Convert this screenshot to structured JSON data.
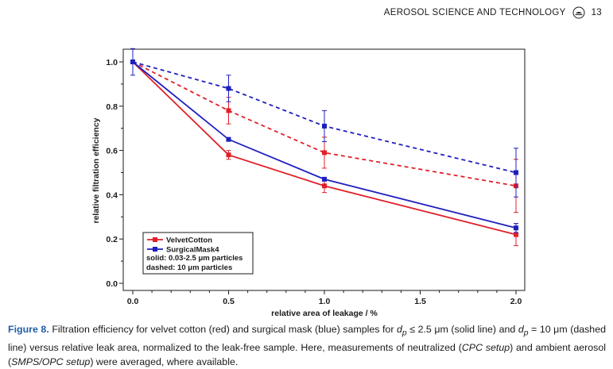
{
  "header": {
    "journal": "AEROSOL SCIENCE AND TECHNOLOGY",
    "logo_icon": "journal-logo-icon",
    "page_number": "13"
  },
  "chart_data": {
    "type": "line",
    "xlabel": "relative area of leakage / %",
    "ylabel": "relative filtration efficiency",
    "xlim": [
      0,
      2.0
    ],
    "ylim": [
      0,
      1.05
    ],
    "x_ticks": [
      "0.0",
      "0.5",
      "1.0",
      "1.5",
      "2.0"
    ],
    "x_tick_values": [
      0,
      0.5,
      1.0,
      1.5,
      2.0
    ],
    "y_ticks": [
      "0.0",
      "0.2",
      "0.4",
      "0.6",
      "0.8",
      "1.0"
    ],
    "y_tick_values": [
      0,
      0.2,
      0.4,
      0.6,
      0.8,
      1.0
    ],
    "x": [
      0,
      0.5,
      1.0,
      2.0
    ],
    "series": [
      {
        "name": "VelvetCotton",
        "particles": "solid",
        "color": "#e0202a",
        "dashed": false,
        "values": [
          1.0,
          0.58,
          0.44,
          0.22
        ],
        "errors": [
          0.0,
          0.02,
          0.03,
          0.05
        ]
      },
      {
        "name": "SurgicalMask4",
        "particles": "solid",
        "color": "#1f1fbf",
        "dashed": false,
        "values": [
          1.0,
          0.65,
          0.47,
          0.25
        ],
        "errors": [
          0.0,
          0.0,
          0.0,
          0.02
        ]
      },
      {
        "name": "VelvetCotton",
        "particles": "dashed",
        "color": "#e0202a",
        "dashed": true,
        "values": [
          1.0,
          0.78,
          0.59,
          0.44
        ],
        "errors": [
          0.0,
          0.06,
          0.07,
          0.12
        ]
      },
      {
        "name": "SurgicalMask4",
        "particles": "dashed",
        "color": "#1f1fbf",
        "dashed": true,
        "values": [
          1.0,
          0.88,
          0.71,
          0.5
        ],
        "errors": [
          0.06,
          0.06,
          0.07,
          0.11
        ]
      }
    ],
    "legend": {
      "placement": "bottom-left",
      "entries": [
        "VelvetCotton",
        "SurgicalMask4"
      ],
      "notes": [
        "solid: 0.03-2.5 μm particles",
        "dashed: 10 μm particles"
      ]
    }
  },
  "caption": {
    "label": "Figure 8.",
    "text_1": " Filtration efficiency for velvet cotton (red) and surgical mask (blue) samples for ",
    "cond_1": "d",
    "cond_1_sub": "p",
    "cond_1_rel": " ≤ 2.5 μm",
    "text_2": " (solid line) and ",
    "cond_2": "d",
    "cond_2_sub": "p",
    "cond_2_rel": " = 10 μm",
    "text_3": " (dashed line) versus relative leak area, normalized to the leak-free sample. Here, measurements of neutralized (",
    "setup_1": "CPC setup",
    "text_4": ") and ambient aerosol (",
    "setup_2": "SMPS/OPC setup",
    "text_5": ") were averaged, where available."
  }
}
